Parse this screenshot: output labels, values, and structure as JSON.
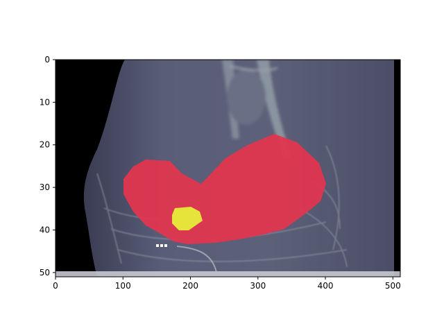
{
  "figure": {
    "background": "#ffffff",
    "image": {
      "description_colors": {
        "ct_tissue": "#5a5d78",
        "ct_background": "#000000",
        "overlay_red": "#e0364f",
        "overlay_yellow": "#e6e33a",
        "bone_highlight": "#a8b3b8"
      }
    },
    "x_axis": {
      "ticks": [
        {
          "value": 0,
          "label": "0"
        },
        {
          "value": 100,
          "label": "100"
        },
        {
          "value": 200,
          "label": "200"
        },
        {
          "value": 300,
          "label": "300"
        },
        {
          "value": 400,
          "label": "400"
        },
        {
          "value": 500,
          "label": "500"
        }
      ],
      "range": [
        0,
        511
      ]
    },
    "y_axis": {
      "ticks": [
        {
          "value": 0,
          "label": "0"
        },
        {
          "value": 10,
          "label": "10"
        },
        {
          "value": 20,
          "label": "20"
        },
        {
          "value": 30,
          "label": "30"
        },
        {
          "value": 40,
          "label": "40"
        },
        {
          "value": 50,
          "label": "50"
        }
      ],
      "range": [
        0,
        51
      ],
      "inverted": true
    }
  }
}
